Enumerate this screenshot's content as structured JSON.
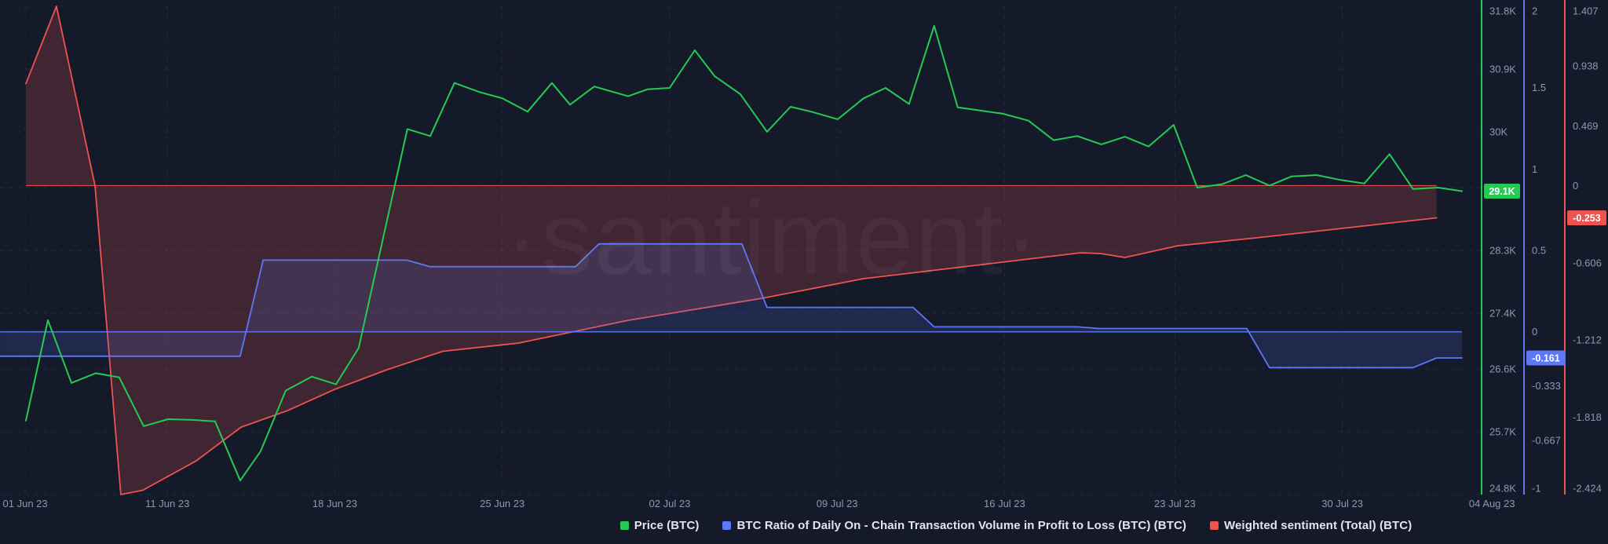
{
  "chart_data": {
    "type": "line",
    "watermark": "·santiment·",
    "colors": {
      "background": "#151a2b",
      "grid": "rgba(170,180,210,0.10)",
      "tick_text": "#9097ab",
      "price": "#26c953",
      "ratio": "#5d78f7",
      "sentiment": "#ef5350",
      "ratio_fill": "rgba(94,119,247,0.16)",
      "sentiment_fill": "rgba(239,83,80,0.20)",
      "badge_text": "#ffffff"
    },
    "x_axis": {
      "labels": [
        {
          "text": "01 Jun 23",
          "fx": 0.017,
          "grid": true
        },
        {
          "text": "11 Jun 23",
          "fx": 0.113,
          "grid": true
        },
        {
          "text": "18 Jun 23",
          "fx": 0.226,
          "grid": true
        },
        {
          "text": "25 Jun 23",
          "fx": 0.339,
          "grid": true
        },
        {
          "text": "02 Jul 23",
          "fx": 0.452,
          "grid": true
        },
        {
          "text": "09 Jul 23",
          "fx": 0.565,
          "grid": true
        },
        {
          "text": "16 Jul 23",
          "fx": 0.678,
          "grid": true
        },
        {
          "text": "23 Jul 23",
          "fx": 0.793,
          "grid": true
        },
        {
          "text": "30 Jul 23",
          "fx": 0.906,
          "grid": true
        },
        {
          "text": "04 Aug 23",
          "fx": 1.007,
          "grid": false
        }
      ]
    },
    "axes": {
      "price": {
        "min": 24.8,
        "max": 31.8,
        "ticks": [
          {
            "v": 31.8,
            "label": "31.8K"
          },
          {
            "v": 30.9,
            "label": "30.9K"
          },
          {
            "v": 30.0,
            "label": "30K"
          },
          {
            "v": 29.2,
            "label": "29.2K"
          },
          {
            "v": 28.3,
            "label": "28.3K"
          },
          {
            "v": 27.4,
            "label": "27.4K"
          },
          {
            "v": 26.6,
            "label": "26.6K"
          },
          {
            "v": 25.7,
            "label": "25.7K"
          },
          {
            "v": 24.8,
            "label": "24.8K"
          }
        ],
        "last": {
          "v": 29.15,
          "label": "29.1K"
        }
      },
      "ratio": {
        "min": -1,
        "max": 2,
        "ticks": [
          {
            "v": 2,
            "label": "2"
          },
          {
            "v": 1.5,
            "label": "1.5"
          },
          {
            "v": 1,
            "label": "1"
          },
          {
            "v": 0.5,
            "label": "0.5"
          },
          {
            "v": 0,
            "label": "0"
          },
          {
            "v": -0.333,
            "label": "-0.333"
          },
          {
            "v": -0.667,
            "label": "-0.667"
          },
          {
            "v": -1,
            "label": "-1"
          }
        ],
        "last": {
          "v": -0.161,
          "label": "-0.161"
        }
      },
      "sentiment": {
        "min": -2.424,
        "max": 1.407,
        "ticks": [
          {
            "v": 1.407,
            "label": "1.407"
          },
          {
            "v": 0.938,
            "label": "0.938"
          },
          {
            "v": 0.469,
            "label": "0.469"
          },
          {
            "v": 0,
            "label": "0"
          },
          {
            "v": -0.606,
            "label": "-0.606"
          },
          {
            "v": -1.212,
            "label": "-1.212"
          },
          {
            "v": -1.818,
            "label": "-1.818"
          },
          {
            "v": -2.424,
            "label": "-2.424"
          }
        ],
        "last": {
          "v": -0.253,
          "label": "-0.253"
        }
      }
    },
    "series": [
      {
        "name": "Weighted sentiment (Total) (BTC)",
        "axis": "sentiment",
        "fill_to_zero": true,
        "zero_line": true,
        "points": [
          [
            0,
            0.8
          ],
          [
            1.36,
            1.407
          ],
          [
            3.08,
            0.0
          ],
          [
            4.23,
            -2.424
          ],
          [
            5.21,
            -2.39
          ],
          [
            7.59,
            -2.16
          ],
          [
            9.59,
            -1.895
          ],
          [
            11.65,
            -1.766
          ],
          [
            13.75,
            -1.6
          ],
          [
            16.09,
            -1.445
          ],
          [
            18.58,
            -1.3
          ],
          [
            21.94,
            -1.236
          ],
          [
            26.84,
            -1.057
          ],
          [
            32.78,
            -0.885
          ],
          [
            37.33,
            -0.73
          ],
          [
            40.83,
            -0.657
          ],
          [
            47.02,
            -0.527
          ],
          [
            47.93,
            -0.534
          ],
          [
            48.98,
            -0.564
          ],
          [
            51.33,
            -0.472
          ],
          [
            54.83,
            -0.41
          ],
          [
            58.32,
            -0.342
          ],
          [
            62.87,
            -0.253
          ]
        ]
      },
      {
        "name": "BTC Ratio of Daily On - Chain Transaction Volume in Profit to Loss (BTC) (BTC)",
        "axis": "ratio",
        "fill_to_zero": true,
        "zero_line": true,
        "points": [
          [
            -1.15,
            -0.15
          ],
          [
            9.55,
            -0.15
          ],
          [
            10.57,
            0.44
          ],
          [
            16.97,
            0.44
          ],
          [
            18.02,
            0.4
          ],
          [
            24.49,
            0.4
          ],
          [
            25.54,
            0.54
          ],
          [
            31.91,
            0.54
          ],
          [
            33.03,
            0.15
          ],
          [
            39.54,
            0.15
          ],
          [
            40.48,
            0.03
          ],
          [
            46.88,
            0.03
          ],
          [
            47.83,
            0.02
          ],
          [
            54.41,
            0.02
          ],
          [
            55.42,
            -0.22
          ],
          [
            61.82,
            -0.22
          ],
          [
            62.87,
            -0.161
          ],
          [
            64,
            -0.161
          ]
        ]
      },
      {
        "name": "Price (BTC)",
        "axis": "price",
        "fill_to_zero": false,
        "zero_line": false,
        "points": [
          [
            0,
            25.86
          ],
          [
            0.98,
            27.3
          ],
          [
            2.03,
            26.4
          ],
          [
            3.11,
            26.54
          ],
          [
            4.16,
            26.48
          ],
          [
            5.25,
            25.78
          ],
          [
            6.33,
            25.88
          ],
          [
            7.42,
            25.87
          ],
          [
            8.43,
            25.85
          ],
          [
            9.55,
            25.0
          ],
          [
            10.46,
            25.42
          ],
          [
            11.58,
            26.29
          ],
          [
            12.74,
            26.49
          ],
          [
            13.82,
            26.38
          ],
          [
            14.83,
            26.9
          ],
          [
            17.0,
            30.04
          ],
          [
            18.02,
            29.94
          ],
          [
            19.1,
            30.7
          ],
          [
            20.22,
            30.57
          ],
          [
            21.24,
            30.48
          ],
          [
            22.36,
            30.29
          ],
          [
            23.44,
            30.7
          ],
          [
            24.25,
            30.39
          ],
          [
            25.33,
            30.65
          ],
          [
            26.84,
            30.51
          ],
          [
            27.71,
            30.61
          ],
          [
            28.69,
            30.63
          ],
          [
            29.81,
            31.17
          ],
          [
            30.69,
            30.8
          ],
          [
            31.84,
            30.54
          ],
          [
            33.03,
            30.0
          ],
          [
            34.08,
            30.36
          ],
          [
            34.99,
            30.29
          ],
          [
            36.18,
            30.18
          ],
          [
            37.33,
            30.48
          ],
          [
            38.31,
            30.63
          ],
          [
            39.36,
            30.4
          ],
          [
            40.48,
            31.52
          ],
          [
            41.53,
            30.35
          ],
          [
            43.53,
            30.26
          ],
          [
            44.68,
            30.16
          ],
          [
            45.8,
            29.88
          ],
          [
            46.85,
            29.94
          ],
          [
            47.93,
            29.82
          ],
          [
            48.98,
            29.93
          ],
          [
            50.03,
            29.79
          ],
          [
            51.15,
            30.1
          ],
          [
            52.2,
            29.2
          ],
          [
            53.32,
            29.25
          ],
          [
            54.37,
            29.38
          ],
          [
            55.42,
            29.23
          ],
          [
            56.4,
            29.36
          ],
          [
            57.52,
            29.38
          ],
          [
            58.6,
            29.31
          ],
          [
            59.65,
            29.26
          ],
          [
            60.77,
            29.68
          ],
          [
            61.82,
            29.18
          ],
          [
            62.94,
            29.2
          ],
          [
            64,
            29.15
          ]
        ]
      }
    ]
  },
  "legend": {
    "items": [
      {
        "label": "Price (BTC)",
        "color": "#26c953"
      },
      {
        "label": "BTC Ratio of Daily On - Chain Transaction Volume in Profit to Loss (BTC) (BTC)",
        "color": "#5d78f7"
      },
      {
        "label": "Weighted sentiment (Total) (BTC)",
        "color": "#ef5350"
      }
    ]
  }
}
